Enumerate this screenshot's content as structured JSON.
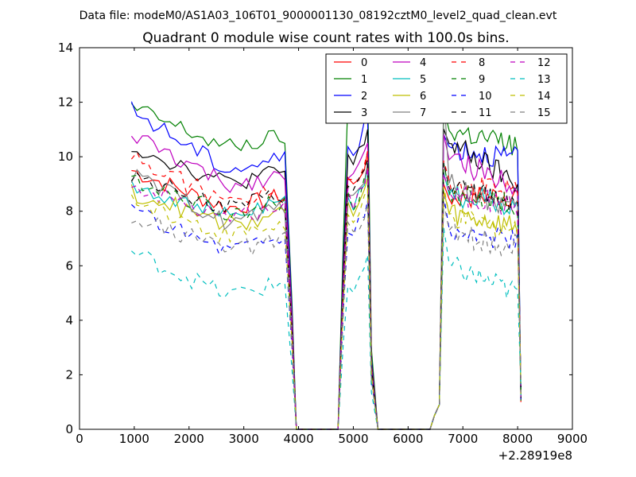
{
  "chart_data": {
    "type": "line",
    "suptitle": "Data file: modeM0/AS1A03_106T01_9000001130_08192cztM0_level2_quad_clean.evt",
    "title": "Quadrant 0 module wise count rates with 100.0s bins.",
    "xlabel": "",
    "ylabel": "",
    "x_offset_label": "+2.28919e8",
    "xlim": [
      0,
      9000
    ],
    "ylim": [
      0,
      14
    ],
    "x_ticks": [
      0,
      1000,
      2000,
      3000,
      4000,
      5000,
      6000,
      7000,
      8000,
      9000
    ],
    "x_tick_labels": [
      "0",
      "1000",
      "2000",
      "3000",
      "4000",
      "5000",
      "6000",
      "7000",
      "8000",
      "9000"
    ],
    "y_ticks": [
      0,
      2,
      4,
      6,
      8,
      10,
      12,
      14
    ],
    "y_tick_labels": [
      "0",
      "2",
      "4",
      "6",
      "8",
      "10",
      "12",
      "14"
    ],
    "grid": false,
    "legend_position": "top-right",
    "gaps": [
      [
        3980,
        4720
      ],
      [
        5460,
        6400
      ]
    ],
    "series": [
      {
        "name": "0",
        "color": "#ff0000",
        "dash": "solid",
        "levels": [
          9.5,
          8.1,
          9.2,
          8.8,
          8.5,
          8.6
        ]
      },
      {
        "name": "1",
        "color": "#008000",
        "dash": "solid",
        "levels": [
          11.8,
          10.3,
          11.8,
          11.7,
          11.0,
          10.4
        ]
      },
      {
        "name": "2",
        "color": "#0000ff",
        "dash": "solid",
        "levels": [
          11.7,
          9.5,
          10.5,
          10.8,
          10.4,
          9.9
        ]
      },
      {
        "name": "3",
        "color": "#000000",
        "dash": "solid",
        "levels": [
          10.4,
          9.0,
          10.0,
          11.1,
          10.5,
          9.0
        ]
      },
      {
        "name": "4",
        "color": "#bf00bf",
        "dash": "solid",
        "levels": [
          10.8,
          8.9,
          9.5,
          11.0,
          9.9,
          9.0
        ]
      },
      {
        "name": "5",
        "color": "#00bfbf",
        "dash": "solid",
        "levels": [
          9.0,
          7.8,
          8.6,
          9.3,
          8.6,
          8.2
        ]
      },
      {
        "name": "6",
        "color": "#bfbf00",
        "dash": "solid",
        "levels": [
          8.7,
          7.5,
          8.2,
          8.7,
          7.9,
          7.4
        ]
      },
      {
        "name": "7",
        "color": "#808080",
        "dash": "solid",
        "levels": [
          9.3,
          7.6,
          8.8,
          12.5,
          9.0,
          8.0
        ]
      },
      {
        "name": "8",
        "color": "#ff0000",
        "dash": "dashed",
        "levels": [
          10.0,
          8.3,
          9.2,
          10.0,
          9.1,
          8.7
        ]
      },
      {
        "name": "9",
        "color": "#008000",
        "dash": "dashed",
        "levels": [
          9.2,
          7.9,
          8.5,
          9.6,
          8.7,
          8.2
        ]
      },
      {
        "name": "10",
        "color": "#0000ff",
        "dash": "dashed",
        "levels": [
          8.0,
          6.6,
          7.4,
          8.5,
          7.3,
          6.9
        ]
      },
      {
        "name": "11",
        "color": "#000000",
        "dash": "dashed",
        "levels": [
          9.4,
          8.1,
          8.9,
          9.8,
          8.8,
          8.4
        ]
      },
      {
        "name": "12",
        "color": "#bf00bf",
        "dash": "dashed",
        "levels": [
          9.0,
          7.7,
          8.6,
          9.5,
          8.6,
          8.2
        ]
      },
      {
        "name": "13",
        "color": "#00bfbf",
        "dash": "dashed",
        "levels": [
          6.5,
          4.9,
          5.4,
          7.2,
          6.0,
          5.0
        ]
      },
      {
        "name": "14",
        "color": "#bfbf00",
        "dash": "dashed",
        "levels": [
          8.4,
          7.1,
          7.8,
          8.8,
          7.8,
          7.3
        ]
      },
      {
        "name": "15",
        "color": "#808080",
        "dash": "dashed",
        "levels": [
          7.9,
          6.5,
          7.3,
          8.3,
          7.2,
          6.7
        ]
      }
    ]
  }
}
